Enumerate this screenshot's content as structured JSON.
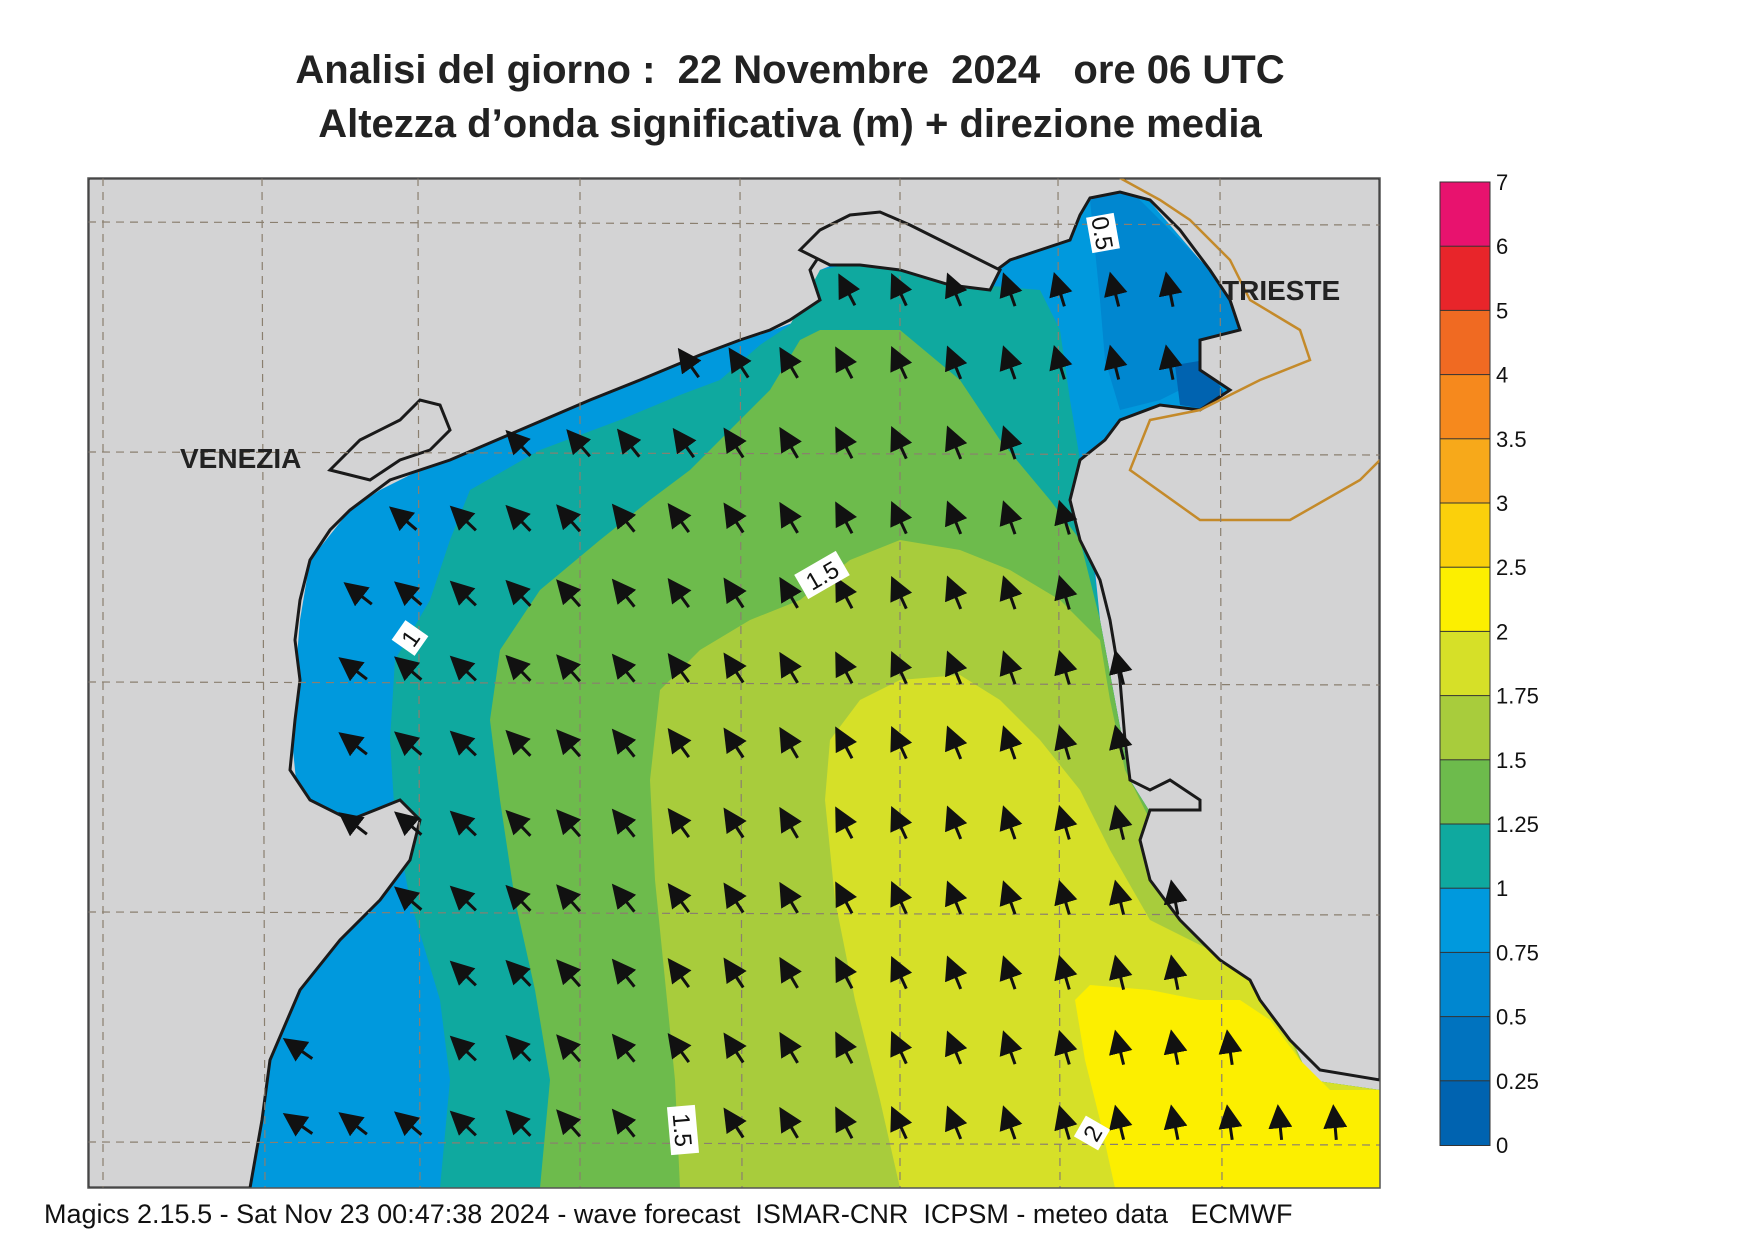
{
  "title_line1": "Analisi del giorno :  22 Novembre  2024   ore 06 UTC",
  "title_line2": "Altezza d’onda significativa (m) + direzione media",
  "footer": "Magics 2.15.5 - Sat Nov 23 00:47:38 2024 - wave forecast  ISMAR-CNR  ICPSM - meteo data   ECMWF",
  "places": {
    "venezia": "VENEZIA",
    "trieste": "TRIESTE"
  },
  "contour_labels": [
    "0.5",
    "1",
    "1.5",
    "1.5",
    "2"
  ],
  "colorbar": {
    "labels": [
      "7",
      "6",
      "5",
      "4",
      "3.5",
      "3",
      "2.5",
      "2",
      "1.75",
      "1.5",
      "1.25",
      "1",
      "0.75",
      "0.5",
      "0.25",
      "0"
    ],
    "colors": [
      "#e8126e",
      "#e8252a",
      "#f06a22",
      "#f6891d",
      "#f7a91a",
      "#fbd00b",
      "#fcef00",
      "#d6e028",
      "#a8cc3c",
      "#6dbb4c",
      "#0fa99f",
      "#0099dd",
      "#0087d0",
      "#0073bf",
      "#0063b0"
    ]
  },
  "wave_direction": "north-northwest",
  "colors": {
    "land": "#d3d3d4",
    "coast": "#1a1a1a",
    "border": "#c48a2a",
    "grid": "#8a7f6f"
  }
}
